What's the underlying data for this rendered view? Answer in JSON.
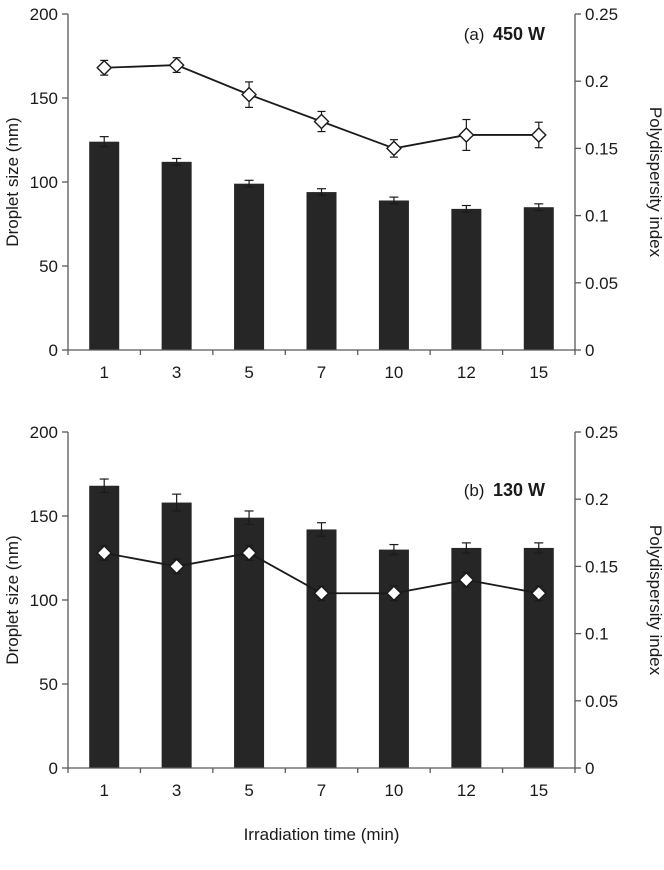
{
  "figure": {
    "xlabel": "Irradiation time (min)",
    "ylabel_left": "Droplet size (nm)",
    "ylabel_right": "Polydispersity index"
  },
  "colors": {
    "bar": "#262626",
    "line": "#1a1a1a",
    "axis": "#595959",
    "text": "#1a1a1a",
    "marker_fill": "#ffffff"
  },
  "chart_data": [
    {
      "type": "bar",
      "panel_label": "(a)",
      "condition_label": "450 W",
      "categories": [
        "1",
        "3",
        "5",
        "7",
        "10",
        "12",
        "15"
      ],
      "xlabel": "",
      "ylabel_left": "Droplet size (nm)",
      "ylabel_right": "Polydispersity index",
      "ylim_left": [
        0,
        200
      ],
      "ylim_right": [
        0,
        0.25
      ],
      "yticks_left": [
        0,
        50,
        100,
        150,
        200
      ],
      "yticks_right": [
        0,
        0.05,
        0.1,
        0.15,
        0.2,
        0.25
      ],
      "grid": false,
      "legend": "none",
      "series": [
        {
          "name": "Droplet size (nm)",
          "type": "bar",
          "axis": "left",
          "values": [
            124,
            112,
            99,
            94,
            89,
            84,
            85
          ],
          "errors": [
            3,
            2,
            2,
            2,
            2,
            2,
            2
          ]
        },
        {
          "name": "Polydispersity index",
          "type": "line",
          "axis": "right",
          "marker": "diamond-open",
          "values": [
            0.21,
            0.212,
            0.19,
            0.17,
            0.15,
            0.16,
            0.16
          ],
          "errors": [
            0.004,
            0.004,
            0.008,
            0.006,
            0.005,
            0.01,
            0.008
          ]
        }
      ]
    },
    {
      "type": "bar",
      "panel_label": "(b)",
      "condition_label": "130 W",
      "categories": [
        "1",
        "3",
        "5",
        "7",
        "10",
        "12",
        "15"
      ],
      "xlabel": "Irradiation time (min)",
      "ylabel_left": "Droplet size (nm)",
      "ylabel_right": "Polydispersity index",
      "ylim_left": [
        0,
        200
      ],
      "ylim_right": [
        0,
        0.25
      ],
      "yticks_left": [
        0,
        50,
        100,
        150,
        200
      ],
      "yticks_right": [
        0,
        0.05,
        0.1,
        0.15,
        0.2,
        0.25
      ],
      "grid": false,
      "legend": "none",
      "series": [
        {
          "name": "Droplet size (nm)",
          "type": "bar",
          "axis": "left",
          "values": [
            168,
            158,
            149,
            142,
            130,
            131,
            131
          ],
          "errors": [
            4,
            5,
            4,
            4,
            3,
            3,
            3
          ]
        },
        {
          "name": "Polydispersity index",
          "type": "line",
          "axis": "right",
          "marker": "diamond-filled-white",
          "values": [
            0.16,
            0.15,
            0.16,
            0.13,
            0.13,
            0.14,
            0.13
          ],
          "errors": [
            0.004,
            0.004,
            0.004,
            0.004,
            0.004,
            0.004,
            0.004
          ]
        }
      ]
    }
  ]
}
